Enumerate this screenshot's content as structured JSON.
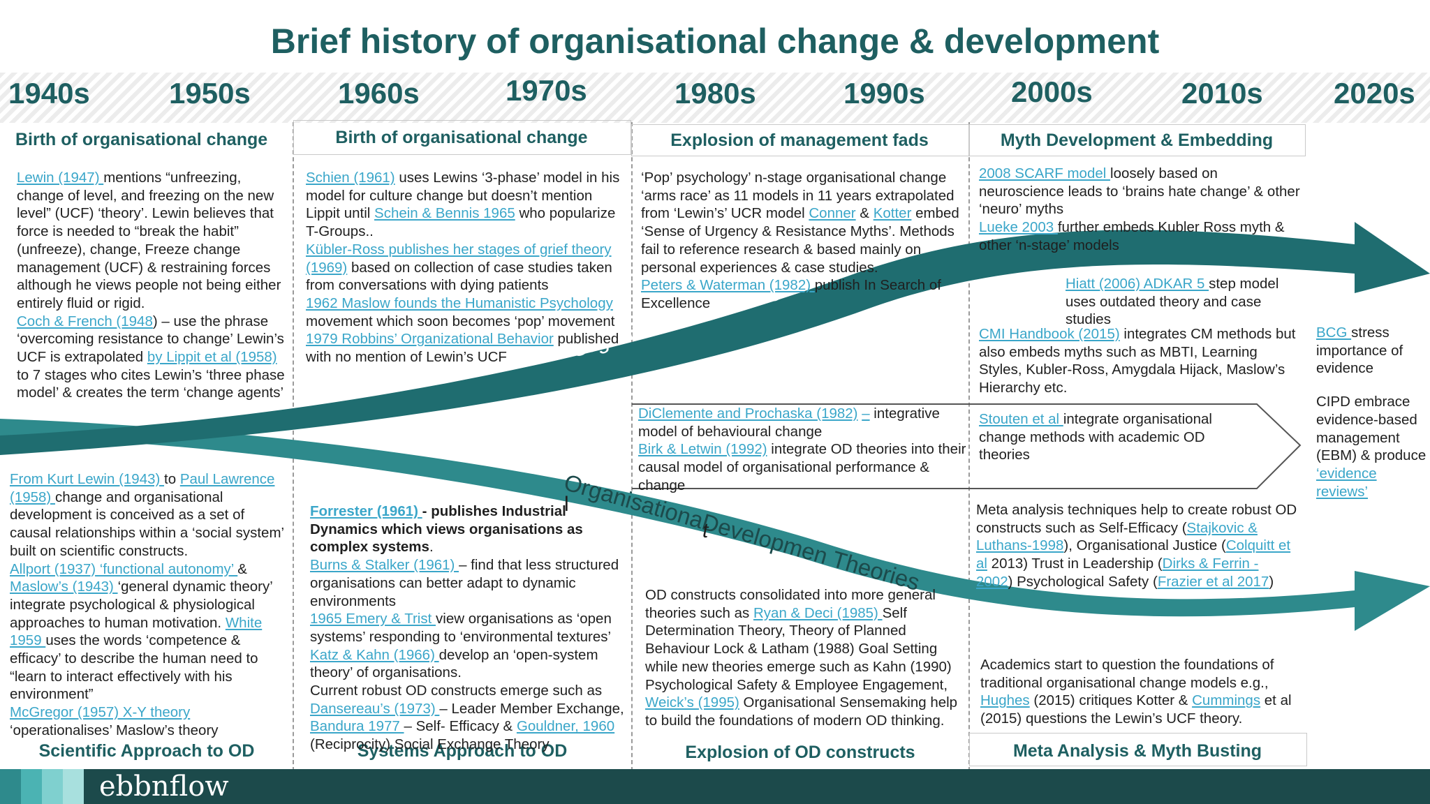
{
  "title": "Brief history of organisational change & development",
  "decades": [
    "1940s",
    "1950s",
    "1960s",
    "1970s",
    "1980s",
    "1990s",
    "2000s",
    "2010s",
    "2020s"
  ],
  "headings": {
    "top1": "Birth of organisational change",
    "top2": "Birth of organisational change",
    "top3": "Explosion of management fads",
    "top4": "Myth Development & Embedding",
    "bottom1": "Scientific Approach to OD",
    "bottom2": "Systems Approach to OD",
    "bottom3": "Explosion of OD constructs",
    "bottom4": "Meta Analysis & Myth Busting"
  },
  "arrows": {
    "change_methods_label": "Organisationa ChangeMethods",
    "od_theories_label": "OrganisationaDevelopmen Theories",
    "stray_1": "l",
    "stray_2": "t"
  },
  "texts": {
    "c1_top": [
      [
        {
          "t": "Lewin (1947) ",
          "l": true
        },
        {
          "t": "mentions “unfreezing, change of level, and freezing on the new level” (UCF) ‘theory’.  Lewin believes that force is needed to “break the habit” (unfreeze), change, Freeze change management (UCF) & restraining forces although he views people not being either entirely fluid or rigid."
        }
      ],
      [
        {
          "t": "Coch & French (1948",
          "l": true
        },
        {
          "t": ") – use the phrase ‘overcoming resistance to change’ Lewin’s UCF is extrapolated "
        },
        {
          "t": "by Lippit et al (1958)",
          "l": true
        },
        {
          "t": " to 7 stages who cites Lewin’s ‘three phase model’ & creates  the term ‘change agents’"
        }
      ]
    ],
    "c2_top": [
      [
        {
          "t": "Schien (1961)",
          "l": true
        },
        {
          "t": " uses Lewins ‘3-phase’ model in his model for culture change but doesn’t mention Lippit until "
        },
        {
          "t": "Schein & Bennis 1965",
          "l": true
        },
        {
          "t": " who popularize T-Groups.."
        }
      ],
      [
        {
          "t": "Kübler-Ross publishes her stages of grief theory (1969)",
          "l": true
        },
        {
          "t": " based on collection of case studies taken from conversations with dying patients"
        }
      ],
      [
        {
          "t": "1962 Maslow founds the Humanistic Psychology ",
          "l": true
        },
        {
          "t": "movement which soon becomes ‘pop’ movement"
        }
      ],
      [
        {
          "t": "1979 Robbins’ Organizational Behavior",
          "l": true
        },
        {
          "t": " published with no mention of Lewin’s UCF"
        }
      ]
    ],
    "c3_top": [
      [
        {
          "t": "‘Pop’ psychology’ n-stage organisational change ‘arms race’ as 11 models in 11 years extrapolated from ‘Lewin’s’ UCR model "
        },
        {
          "t": "Conner",
          "l": true
        },
        {
          "t": " & "
        },
        {
          "t": "Kotter",
          "l": true
        },
        {
          "t": " embed ‘Sense of Urgency & Resistance Myths’.  Methods fail to reference research & based mainly on personal experiences & case studies."
        }
      ],
      [
        {
          "t": "Peters & Waterman (1982) ",
          "l": true
        },
        {
          "t": "publish In Search of Excellence"
        }
      ]
    ],
    "c4_top": [
      [
        {
          "t": "2008 SCARF model ",
          "l": true
        },
        {
          "t": "loosely based on neuroscience leads to ‘brains hate change’ & other ‘neuro’ myths"
        }
      ],
      [
        {
          "t": "Lueke 2003 ",
          "l": true
        },
        {
          "t": "further embeds Kubler Ross myth & other ‘n-stage’ models"
        }
      ]
    ],
    "c4_adkar": [
      [
        {
          "t": "Hiatt (2006) ADKAR 5 ",
          "l": true
        },
        {
          "t": "step model uses outdated theory and case studies"
        }
      ]
    ],
    "c4_cmi": [
      [
        {
          "t": "CMI Handbook (2015)",
          "l": true
        },
        {
          "t": " integrates CM methods but also embeds myths such as MBTI, Learning Styles, Kubler-Ross, Amygdala Hijack, Maslow’s Hierarchy  etc."
        }
      ]
    ],
    "c5": [
      [
        {
          "t": "BCG ",
          "l": true
        },
        {
          "t": "stress importance of evidence"
        }
      ],
      [
        {
          "t": "CIPD embrace evidence-based management (EBM) & produce "
        },
        {
          "t": "‘evidence reviews’",
          "l": true
        }
      ]
    ],
    "c3_mid": [
      [
        {
          "t": "DiClemente and Prochaska (1982)",
          "l": true
        },
        {
          "t": " "
        },
        {
          "t": "–",
          "l": true
        },
        {
          "t": " integrative model of behavioural change"
        }
      ],
      [
        {
          "t": "Birk & Letwin (1992)",
          "l": true
        },
        {
          "t": " integrate OD theories into their causal model of organisational performance & change"
        }
      ]
    ],
    "c4_mid": [
      [
        {
          "t": "Stouten et al ",
          "l": true
        },
        {
          "t": " integrate organisational change methods with academic OD theories"
        }
      ]
    ],
    "c1_bot": [
      [
        {
          "t": "From Kurt Lewin (1943) ",
          "l": true
        },
        {
          "t": "to "
        },
        {
          "t": "Paul Lawrence (1958) ",
          "l": true
        },
        {
          "t": "change and organisational development is conceived as a set of causal relationships within a  ‘social system’ built on scientific constructs."
        }
      ],
      [
        {
          "t": "Allport (1937) ‘functional autonomy’ ",
          "l": true
        },
        {
          "t": "& "
        },
        {
          "t": "Maslow’s (1943) ",
          "l": true
        },
        {
          "t": "‘general dynamic theory’ integrate psychological & physiological approaches to human motivation.  "
        },
        {
          "t": "White 1959 ",
          "l": true
        },
        {
          "t": "uses the words ‘competence & efficacy’ to describe the human need to “learn to interact effectively with his environment”"
        }
      ],
      [
        {
          "t": "McGregor (1957) X-Y theory",
          "l": true
        },
        {
          "t": " ‘operationalises’ Maslow’s theory"
        }
      ]
    ],
    "c2_bot": [
      [
        {
          "t": "Forrester (1961) ",
          "l": true,
          "b": true
        },
        {
          "t": " - publishes Industrial Dynamics which views organisations as complex systems",
          "b": true
        },
        {
          "t": "."
        }
      ],
      [
        {
          "t": "Burns & Stalker (1961) ",
          "l": true
        },
        {
          "t": "– find that less structured organisations can better adapt to dynamic environments"
        }
      ],
      [
        {
          "t": "1965 Emery & Trist ",
          "l": true
        },
        {
          "t": " view organisations as ‘open systems’ responding to ‘environmental textures’"
        }
      ],
      [
        {
          "t": "Katz & Kahn (1966) ",
          "l": true
        },
        {
          "t": "develop an ‘open-system theory’ of organisations."
        }
      ],
      [
        {
          "t": "Current robust OD constructs emerge such as "
        },
        {
          "t": "Dansereau’s (1973) ",
          "l": true
        },
        {
          "t": "– Leader Member Exchange, "
        },
        {
          "t": "Bandura 1977 ",
          "l": true
        },
        {
          "t": "– Self- Efficacy & "
        },
        {
          "t": "Gouldner, 1960 ",
          "l": true
        },
        {
          "t": " (Reciprocity) Social Exchange Theory"
        }
      ]
    ],
    "c3_bot": [
      [
        {
          "t": "OD constructs consolidated into more general theories such as "
        },
        {
          "t": "Ryan & Deci (1985) ",
          "l": true
        },
        {
          "t": "Self Determination Theory, Theory of Planned Behaviour Lock & Latham (1988) Goal Setting while new theories emerge such as Kahn (1990) Psychological Safety & Employee Engagement, "
        },
        {
          "t": "Weick’s (1995)",
          "l": true
        },
        {
          "t": " Organisational Sensemaking help to build the foundations of modern OD thinking."
        }
      ]
    ],
    "c4_bot1": [
      [
        {
          "t": "Meta analysis techniques help to create robust OD constructs such as Self-Efficacy ("
        },
        {
          "t": "Stajkovic & Luthans-1998",
          "l": true
        },
        {
          "t": "), Organisational Justice ("
        },
        {
          "t": "Colquitt et al",
          "l": true
        },
        {
          "t": " 2013) Trust in Leadership ("
        },
        {
          "t": "Dirks & Ferrin - 2002",
          "l": true
        },
        {
          "t": ")          Psychological Safety ("
        },
        {
          "t": "Frazier et al 2017",
          "l": true
        },
        {
          "t": ")"
        }
      ]
    ],
    "c4_bot2": [
      [
        {
          "t": "Academics start to question the foundations of traditional organisational change models e.g., "
        },
        {
          "t": "Hughes",
          "l": true
        },
        {
          "t": "  (2015) critiques Kotter & "
        },
        {
          "t": "Cummings",
          "l": true
        },
        {
          "t": " et al (2015) questions the Lewin’s UCF theory."
        }
      ]
    ]
  },
  "footer": {
    "logo": "ebbnflow"
  },
  "colors": {
    "teal_dark": "#1e5f61",
    "teal_arrow": "#1f6d70",
    "teal_light": "#2e8a8c",
    "link": "#3aa6c9",
    "footer": "#1c4a4b"
  }
}
